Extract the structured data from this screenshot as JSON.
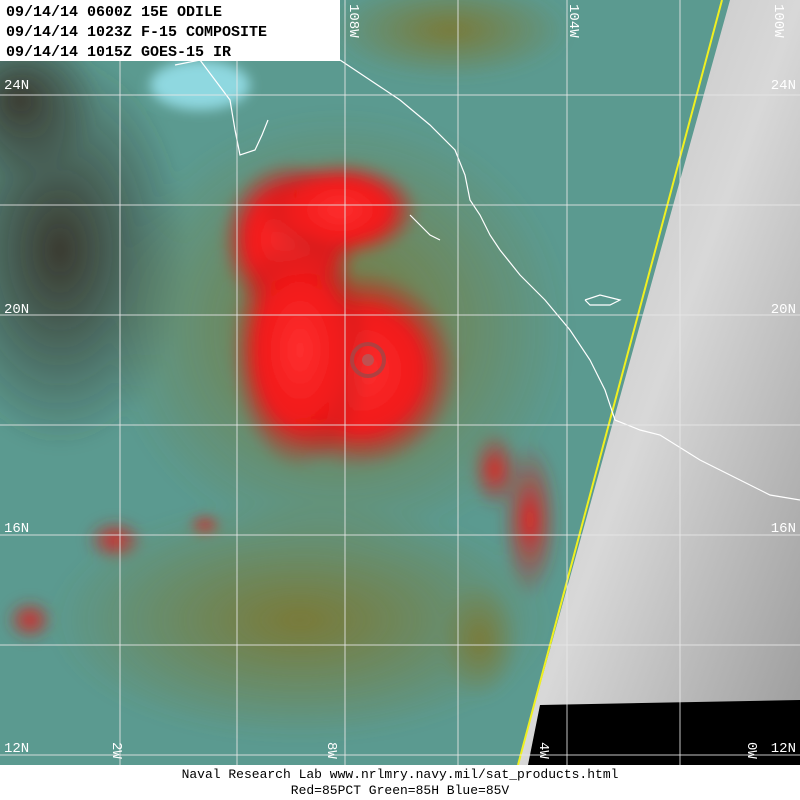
{
  "header": {
    "lines": [
      "09/14/14 0600Z 15E ODILE",
      "09/14/14 1023Z F-15 COMPOSITE",
      "09/14/14 1015Z GOES-15 IR"
    ]
  },
  "latitude_labels_left": [
    "24N",
    "20N",
    "16N",
    "12N"
  ],
  "latitude_labels_right": [
    "24N",
    "20N",
    "16N",
    "12N"
  ],
  "longitude_labels_top": [
    "108W",
    "104W",
    "100W"
  ],
  "longitude_labels_bottom": [
    "2W",
    "8W",
    "4W",
    "0W"
  ],
  "footer": {
    "lines": [
      "Naval Research Lab  www.nrlmry.navy.mil/sat_products.html",
      "Red=85PCT  Green=85H  Blue=85V"
    ]
  }
}
